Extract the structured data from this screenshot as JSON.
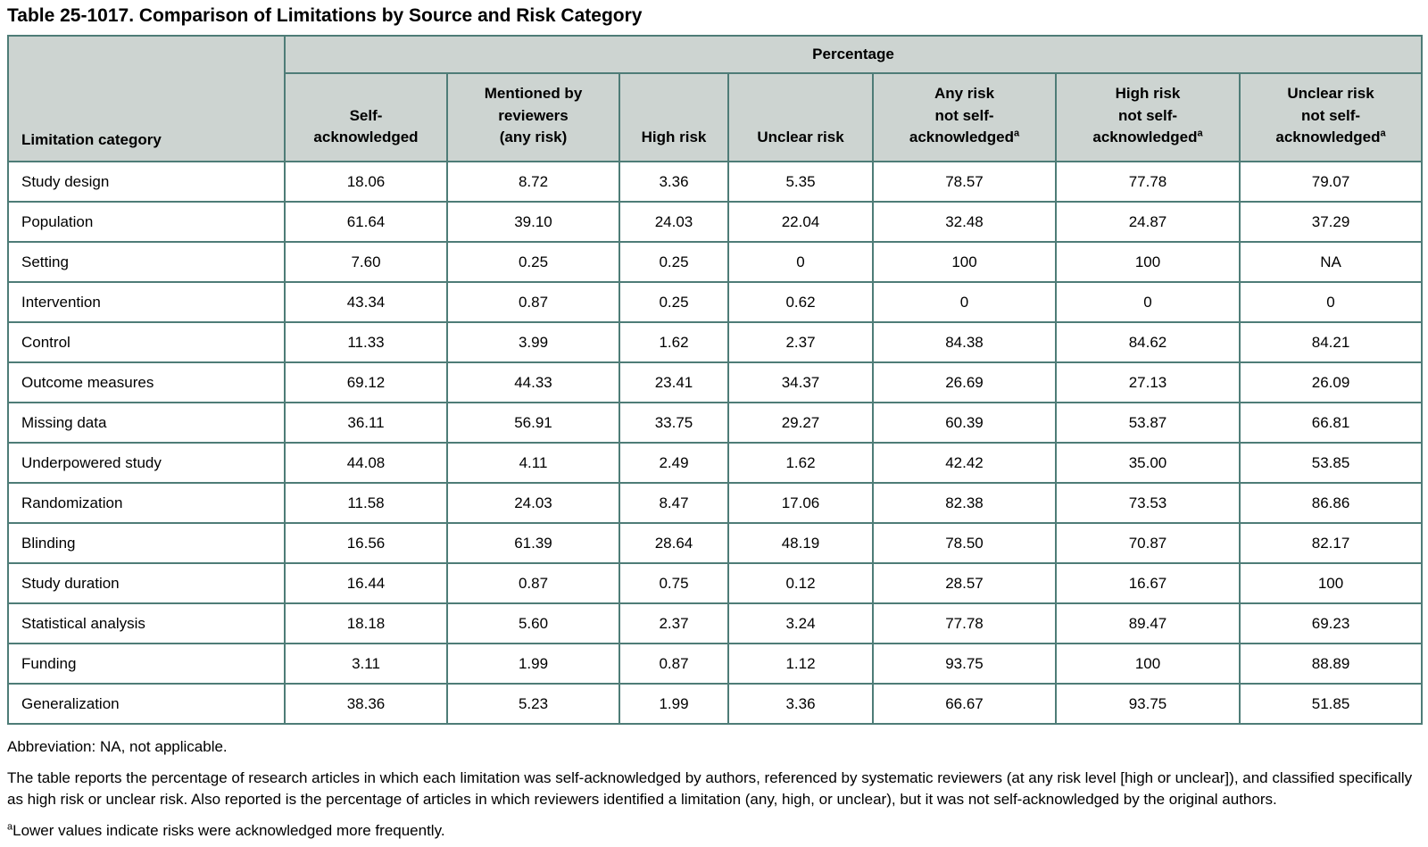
{
  "title": "Table 25-1017. Comparison of Limitations by Source and Risk Category",
  "table": {
    "group_header": "Percentage",
    "row_header_label": "Limitation category",
    "footnote_marker": "a",
    "columns": [
      {
        "id": "self-acknowledged",
        "lines": [
          "Self-",
          "acknowledged"
        ],
        "sup": false
      },
      {
        "id": "mentioned-by-reviewers-any-risk",
        "lines": [
          "Mentioned by",
          "reviewers",
          "(any risk)"
        ],
        "sup": false
      },
      {
        "id": "high-risk",
        "lines": [
          "High risk"
        ],
        "sup": false
      },
      {
        "id": "unclear-risk",
        "lines": [
          "Unclear risk"
        ],
        "sup": false
      },
      {
        "id": "any-risk-not-self-acknowledged",
        "lines": [
          "Any risk",
          "not self-",
          "acknowledged"
        ],
        "sup": true
      },
      {
        "id": "high-risk-not-self-acknowledged",
        "lines": [
          "High risk",
          "not self-",
          "acknowledged"
        ],
        "sup": true
      },
      {
        "id": "unclear-risk-not-self-acknowledged",
        "lines": [
          "Unclear risk",
          "not self-",
          "acknowledged"
        ],
        "sup": true
      }
    ],
    "rows": [
      {
        "category": "Study design",
        "values": [
          "18.06",
          "8.72",
          "3.36",
          "5.35",
          "78.57",
          "77.78",
          "79.07"
        ]
      },
      {
        "category": "Population",
        "values": [
          "61.64",
          "39.10",
          "24.03",
          "22.04",
          "32.48",
          "24.87",
          "37.29"
        ]
      },
      {
        "category": "Setting",
        "values": [
          "7.60",
          "0.25",
          "0.25",
          "0",
          "100",
          "100",
          "NA"
        ]
      },
      {
        "category": "Intervention",
        "values": [
          "43.34",
          "0.87",
          "0.25",
          "0.62",
          "0",
          "0",
          "0"
        ]
      },
      {
        "category": "Control",
        "values": [
          "11.33",
          "3.99",
          "1.62",
          "2.37",
          "84.38",
          "84.62",
          "84.21"
        ]
      },
      {
        "category": "Outcome measures",
        "values": [
          "69.12",
          "44.33",
          "23.41",
          "34.37",
          "26.69",
          "27.13",
          "26.09"
        ]
      },
      {
        "category": "Missing data",
        "values": [
          "36.11",
          "56.91",
          "33.75",
          "29.27",
          "60.39",
          "53.87",
          "66.81"
        ]
      },
      {
        "category": "Underpowered study",
        "values": [
          "44.08",
          "4.11",
          "2.49",
          "1.62",
          "42.42",
          "35.00",
          "53.85"
        ]
      },
      {
        "category": "Randomization",
        "values": [
          "11.58",
          "24.03",
          "8.47",
          "17.06",
          "82.38",
          "73.53",
          "86.86"
        ]
      },
      {
        "category": "Blinding",
        "values": [
          "16.56",
          "61.39",
          "28.64",
          "48.19",
          "78.50",
          "70.87",
          "82.17"
        ]
      },
      {
        "category": "Study duration",
        "values": [
          "16.44",
          "0.87",
          "0.75",
          "0.12",
          "28.57",
          "16.67",
          "100"
        ]
      },
      {
        "category": "Statistical analysis",
        "values": [
          "18.18",
          "5.60",
          "2.37",
          "3.24",
          "77.78",
          "89.47",
          "69.23"
        ]
      },
      {
        "category": "Funding",
        "values": [
          "3.11",
          "1.99",
          "0.87",
          "1.12",
          "93.75",
          "100",
          "88.89"
        ]
      },
      {
        "category": "Generalization",
        "values": [
          "38.36",
          "5.23",
          "1.99",
          "3.36",
          "66.67",
          "93.75",
          "51.85"
        ]
      }
    ]
  },
  "footnotes": {
    "abbreviation": "Abbreviation: NA, not applicable.",
    "description": "The table reports the percentage of research articles in which each limitation was self-acknowledged by authors, referenced by systematic reviewers (at any risk level [high or unclear]), and classified specifically as high risk or unclear risk. Also reported is the percentage of articles in which reviewers identified a limitation (any, high, or unclear), but it was not self-acknowledged by the original authors.",
    "a_marker": "a",
    "a_text": "Lower values indicate risks were acknowledged more frequently."
  },
  "colors": {
    "border": "#4e7c77",
    "header_bg": "#cdd4d1",
    "text": "#000000"
  }
}
